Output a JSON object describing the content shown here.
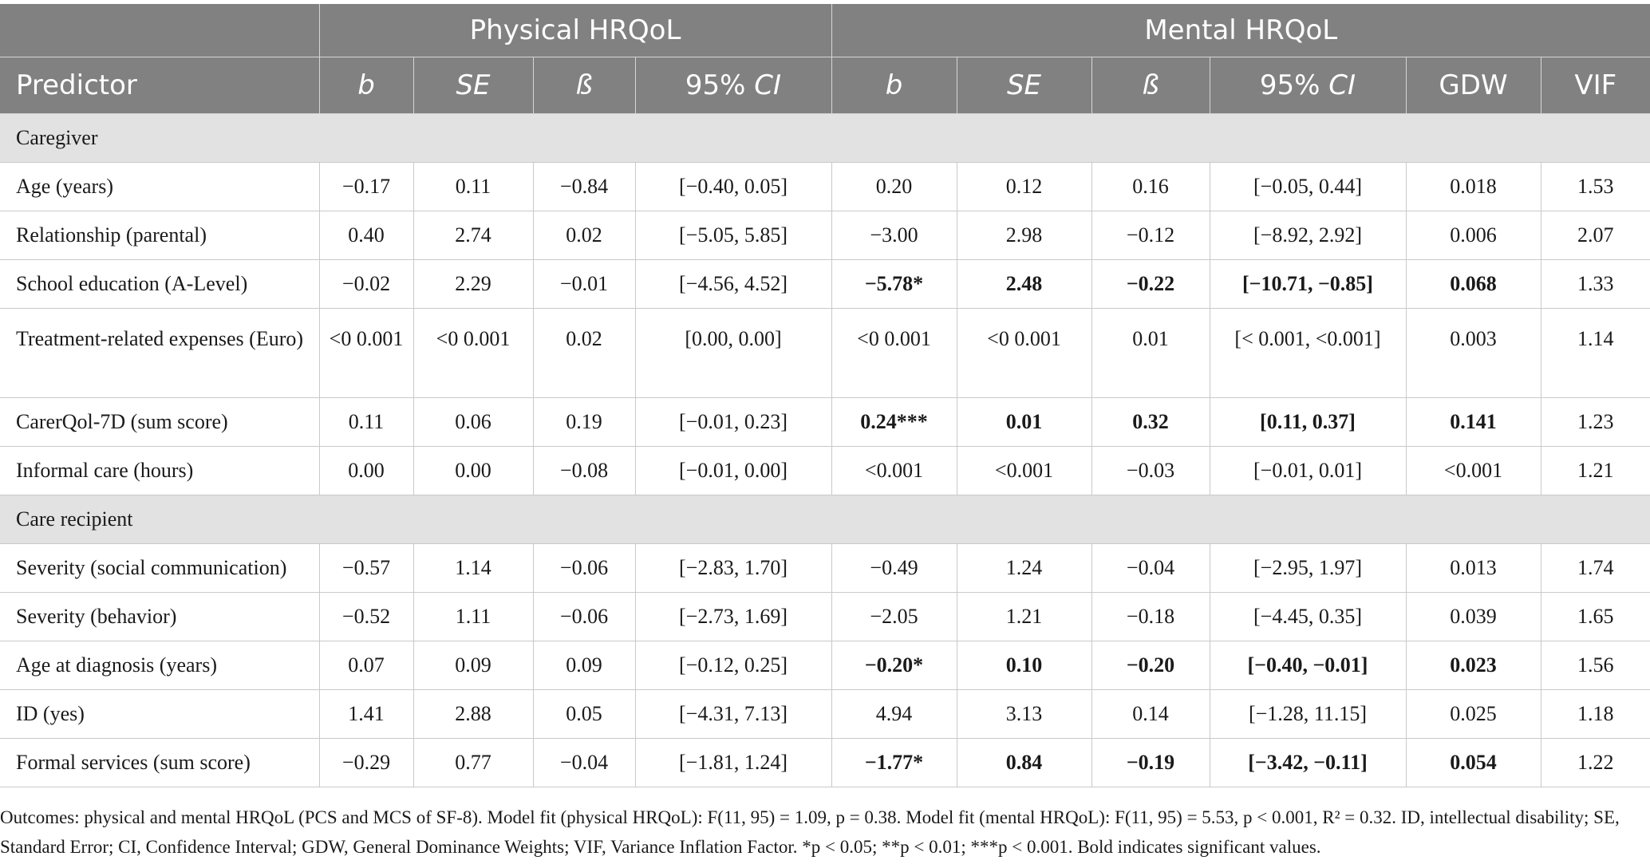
{
  "header": {
    "group_physical": "Physical HRQoL",
    "group_mental": "Mental HRQoL",
    "columns": {
      "predictor": "Predictor",
      "b": "b",
      "se": "SE",
      "beta": "ß",
      "ci_prefix": "95% ",
      "ci_ital": "CI",
      "gdw": "GDW",
      "vif": "VIF"
    }
  },
  "sections": {
    "caregiver": "Caregiver",
    "care_recipient": "Care recipient"
  },
  "rows": [
    {
      "predictor": "Age (years)",
      "cells": [
        "−0.17",
        "0.11",
        "−0.84",
        "[−0.40, 0.05]",
        "0.20",
        "0.12",
        "0.16",
        "[−0.05, 0.44]",
        "0.018",
        "1.53"
      ]
    },
    {
      "predictor": "Relationship (parental)",
      "cells": [
        "0.40",
        "2.74",
        "0.02",
        "[−5.05, 5.85]",
        "−3.00",
        "2.98",
        "−0.12",
        "[−8.92, 2.92]",
        "0.006",
        "2.07"
      ]
    },
    {
      "predictor": "School education (A-Level)",
      "cells": [
        "−0.02",
        "2.29",
        "−0.01",
        "[−4.56, 4.52]",
        "−5.78*",
        "2.48",
        "−0.22",
        "[−10.71, −0.85]",
        "0.068",
        "1.33"
      ]
    },
    {
      "predictor": "Treatment-related expenses (Euro)",
      "cells": [
        "<0 0.001",
        "<0 0.001",
        "0.02",
        "[0.00, 0.00]",
        "<0 0.001",
        "<0 0.001",
        "0.01",
        "[< 0.001, <0.001]",
        "0.003",
        "1.14"
      ]
    },
    {
      "predictor": "CarerQol-7D (sum score)",
      "cells": [
        "0.11",
        "0.06",
        "0.19",
        "[−0.01, 0.23]",
        "0.24***",
        "0.01",
        "0.32",
        "[0.11, 0.37]",
        "0.141",
        "1.23"
      ]
    },
    {
      "predictor": "Informal care (hours)",
      "cells": [
        "0.00",
        "0.00",
        "−0.08",
        "[−0.01, 0.00]",
        "<0.001",
        "<0.001",
        "−0.03",
        "[−0.01, 0.01]",
        "<0.001",
        "1.21"
      ]
    },
    {
      "predictor": "Severity (social communication)",
      "cells": [
        "−0.57",
        "1.14",
        "−0.06",
        "[−2.83, 1.70]",
        "−0.49",
        "1.24",
        "−0.04",
        "[−2.95, 1.97]",
        "0.013",
        "1.74"
      ]
    },
    {
      "predictor": "Severity (behavior)",
      "cells": [
        "−0.52",
        "1.11",
        "−0.06",
        "[−2.73, 1.69]",
        "−2.05",
        "1.21",
        "−0.18",
        "[−4.45, 0.35]",
        "0.039",
        "1.65"
      ]
    },
    {
      "predictor": "Age at diagnosis (years)",
      "cells": [
        "0.07",
        "0.09",
        "0.09",
        "[−0.12, 0.25]",
        "−0.20*",
        "0.10",
        "−0.20",
        "[−0.40, −0.01]",
        "0.023",
        "1.56"
      ]
    },
    {
      "predictor": "ID (yes)",
      "cells": [
        "1.41",
        "2.88",
        "0.05",
        "[−4.31, 7.13]",
        "4.94",
        "3.13",
        "0.14",
        "[−1.28, 11.15]",
        "0.025",
        "1.18"
      ]
    },
    {
      "predictor": "Formal services (sum score)",
      "cells": [
        "−0.29",
        "0.77",
        "−0.04",
        "[−1.81, 1.24]",
        "−1.77*",
        "0.84",
        "−0.19",
        "[−3.42, −0.11]",
        "0.054",
        "1.22"
      ]
    }
  ],
  "footnote": "Outcomes: physical and mental HRQoL (PCS and MCS of SF-8). Model fit (physical HRQoL): F(11, 95) = 1.09, p = 0.38. Model fit (mental HRQoL): F(11, 95) = 5.53, p < 0.001, R² = 0.32. ID, intellectual disability; SE, Standard Error; CI, Confidence Interval; GDW, General Dominance Weights; VIF, Variance Inflation Factor. *p < 0.05; **p < 0.01; ***p < 0.001. Bold indicates significant values."
}
